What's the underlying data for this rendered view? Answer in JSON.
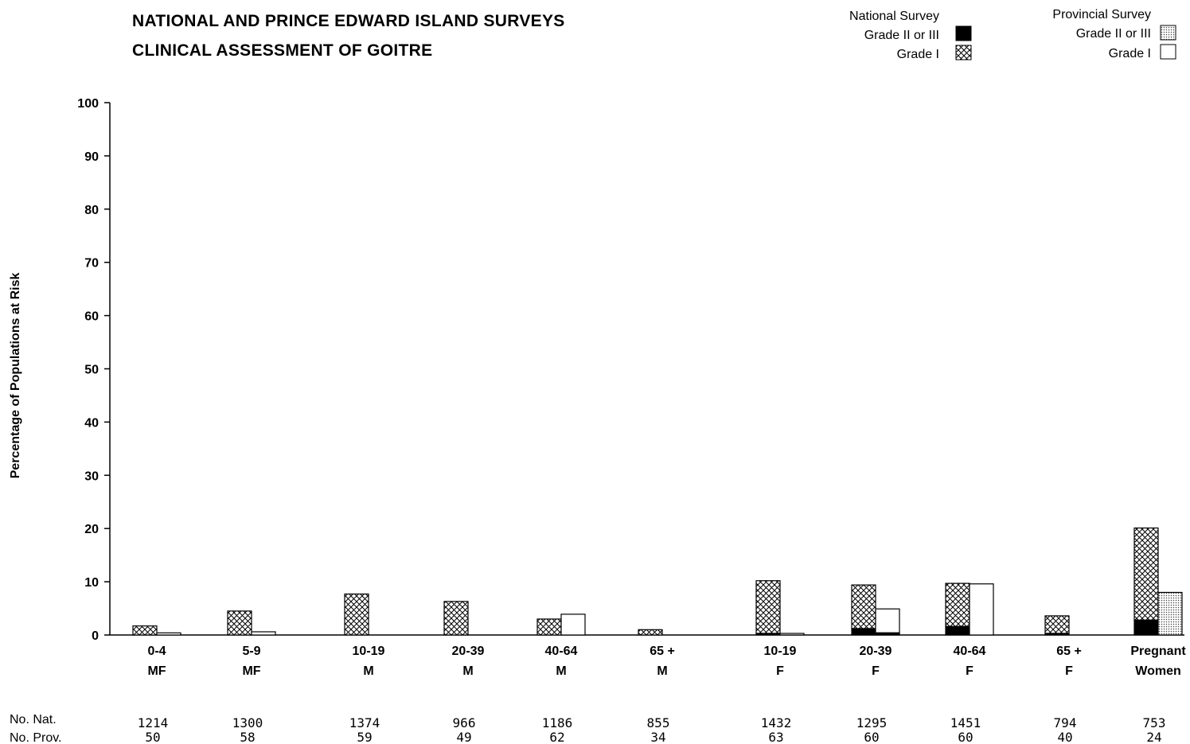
{
  "chart_data": {
    "type": "bar",
    "title_lines": [
      "NATIONAL AND PRINCE EDWARD ISLAND SURVEYS",
      "CLINICAL ASSESSMENT OF GOITRE"
    ],
    "ylabel": "Percentage of Populations at Risk",
    "ylim": [
      0,
      100
    ],
    "yticks": [
      0,
      10,
      20,
      30,
      40,
      50,
      60,
      70,
      80,
      90,
      100
    ],
    "categories": [
      {
        "age": "0-4",
        "sex": "MF"
      },
      {
        "age": "5-9",
        "sex": "MF"
      },
      {
        "age": "10-19",
        "sex": "M"
      },
      {
        "age": "20-39",
        "sex": "M"
      },
      {
        "age": "40-64",
        "sex": "M"
      },
      {
        "age": "65 +",
        "sex": "M"
      },
      {
        "age": "10-19",
        "sex": "F"
      },
      {
        "age": "20-39",
        "sex": "F"
      },
      {
        "age": "40-64",
        "sex": "F"
      },
      {
        "age": "65 +",
        "sex": "F"
      },
      {
        "age": "Pregnant",
        "sex": "Women"
      }
    ],
    "national": {
      "grade_2_3": [
        0,
        0,
        0,
        0,
        0,
        0,
        0.3,
        1.2,
        1.6,
        0.3,
        2.8
      ],
      "grade_1": [
        1.7,
        4.5,
        7.7,
        6.3,
        3.0,
        1.0,
        9.9,
        8.2,
        8.1,
        3.3,
        17.3
      ]
    },
    "provincial": {
      "grade_2_3": [
        0,
        0,
        0,
        0,
        0,
        0,
        0,
        0.4,
        0,
        0,
        8.0
      ],
      "grade_1": [
        0.4,
        0.6,
        0,
        0,
        3.9,
        0,
        0.3,
        4.5,
        9.6,
        0,
        0
      ]
    },
    "counts": {
      "nat_label": "No. Nat.",
      "prov_label": "No. Prov.",
      "nat": [
        "1214",
        "1300",
        "1374",
        "966",
        "1186",
        "855",
        "1432",
        "1295",
        "1451",
        "794",
        "753"
      ],
      "prov": [
        "50",
        "58",
        "59",
        "49",
        "62",
        "34",
        "63",
        "60",
        "60",
        "40",
        "24"
      ]
    },
    "legend": {
      "national_title": "National Survey",
      "national_grade_2_3": "Grade II or III",
      "national_grade_1": "Grade I",
      "provincial_title": "Provincial Survey",
      "provincial_grade_2_3": "Grade II or III",
      "provincial_grade_1": "Grade I",
      "placement": "top-right"
    },
    "grid": false
  }
}
